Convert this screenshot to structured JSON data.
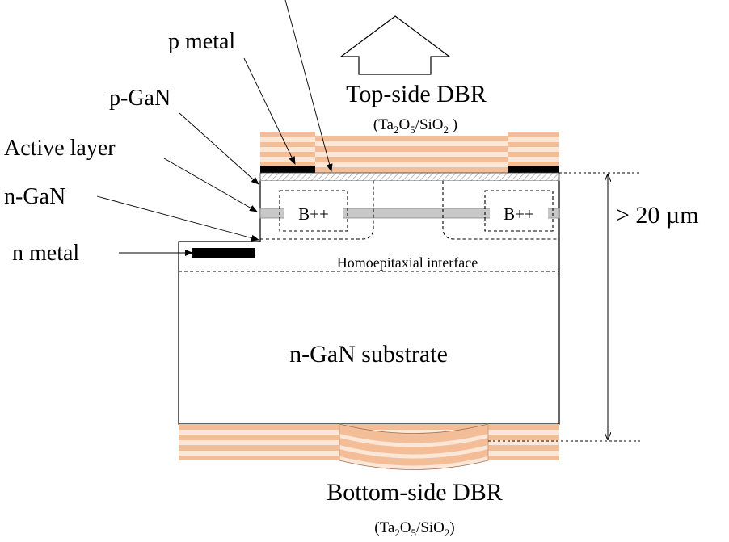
{
  "labels": {
    "p_metal": "p metal",
    "p_gan": "p-GaN",
    "active_layer": "Active layer",
    "n_gan": "n-GaN",
    "n_metal": "n metal",
    "top_dbr": "Top-side DBR",
    "top_dbr_material": {
      "a": "(Ta",
      "s1": "2",
      "b": "O",
      "s2": "5",
      "c": "/SiO",
      "s3": "2",
      "d": " )"
    },
    "homoepitaxial": "Homoepitaxial interface",
    "substrate": "n-GaN substrate",
    "bottom_dbr": "Bottom-side DBR",
    "bottom_dbr_material": {
      "a": "(Ta",
      "s1": "2",
      "b": "O",
      "s2": "5",
      "c": "/SiO",
      "s3": "2",
      "d": ")"
    },
    "thickness": "> 20 µm",
    "implant_left": "B++",
    "implant_right": "B++"
  },
  "colors": {
    "dbr_dark": "#f3bd98",
    "dbr_light": "#fbe7d8",
    "metal": "#000000",
    "active_layer": "#c8c8c8",
    "outline": "#000000"
  }
}
